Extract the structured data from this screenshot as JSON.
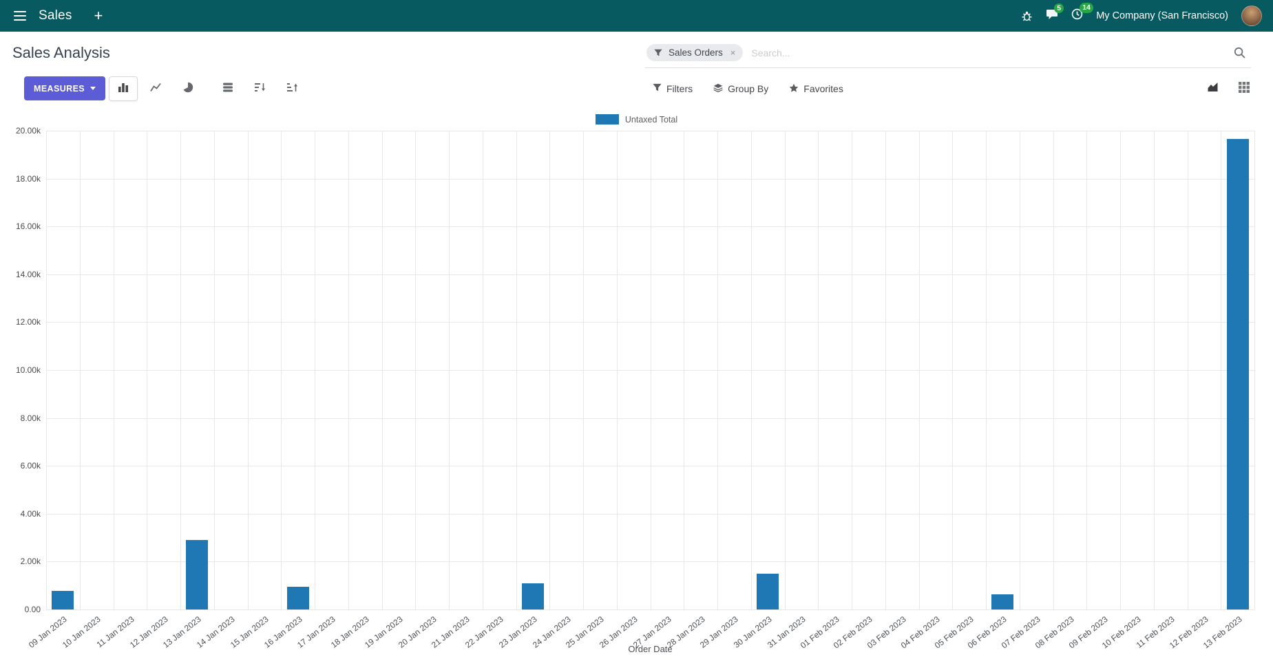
{
  "navbar": {
    "app_menu_label": "Sales",
    "new_label": "+",
    "messages_badge": "5",
    "activities_badge": "14",
    "company_name": "My Company (San Francisco)"
  },
  "control_panel": {
    "breadcrumb_title": "Sales Analysis",
    "measures_button": "MEASURES",
    "filters_label": "Filters",
    "group_by_label": "Group By",
    "favorites_label": "Favorites",
    "search": {
      "facet_label": "Sales Orders",
      "facet_remove_label": "×",
      "placeholder": "Search..."
    }
  },
  "chart_data": {
    "type": "bar",
    "title": "",
    "legend_position": "top",
    "grid": true,
    "xlabel": "Order Date",
    "ylabel": "",
    "ylim": [
      0,
      20000
    ],
    "ytick_step": 2000,
    "ytick_labels": [
      "0.00",
      "2.00k",
      "4.00k",
      "6.00k",
      "8.00k",
      "10.00k",
      "12.00k",
      "14.00k",
      "16.00k",
      "18.00k",
      "20.00k"
    ],
    "categories": [
      "09 Jan 2023",
      "10 Jan 2023",
      "11 Jan 2023",
      "12 Jan 2023",
      "13 Jan 2023",
      "14 Jan 2023",
      "15 Jan 2023",
      "16 Jan 2023",
      "17 Jan 2023",
      "18 Jan 2023",
      "19 Jan 2023",
      "20 Jan 2023",
      "21 Jan 2023",
      "22 Jan 2023",
      "23 Jan 2023",
      "24 Jan 2023",
      "25 Jan 2023",
      "26 Jan 2023",
      "27 Jan 2023",
      "28 Jan 2023",
      "29 Jan 2023",
      "30 Jan 2023",
      "31 Jan 2023",
      "01 Feb 2023",
      "02 Feb 2023",
      "03 Feb 2023",
      "04 Feb 2023",
      "05 Feb 2023",
      "06 Feb 2023",
      "07 Feb 2023",
      "08 Feb 2023",
      "09 Feb 2023",
      "10 Feb 2023",
      "11 Feb 2023",
      "12 Feb 2023",
      "13 Feb 2023"
    ],
    "series": [
      {
        "name": "Untaxed Total",
        "color": "#1F77B4",
        "values": [
          780,
          0,
          0,
          0,
          2900,
          0,
          0,
          950,
          0,
          0,
          0,
          0,
          0,
          0,
          1080,
          0,
          0,
          0,
          0,
          0,
          0,
          1500,
          0,
          0,
          0,
          0,
          0,
          0,
          630,
          0,
          0,
          0,
          0,
          0,
          0,
          19650
        ]
      }
    ]
  },
  "colors": {
    "navbar_bg": "#075A5F",
    "primary_button": "#5C5CD6",
    "badge_green": "#28A745",
    "bar_blue": "#1F77B4"
  },
  "icons": {
    "menu": "hamburger",
    "add": "plus",
    "debug": "bug",
    "messages": "speech-bubble",
    "activities": "clock",
    "search": "magnifier",
    "facet": "funnel",
    "bar_chart": "vertical-bars",
    "line_chart": "polyline",
    "pie_chart": "pie",
    "stacked": "stack",
    "sort_desc": "bars-arrow-down",
    "sort_asc": "bars-arrow-up",
    "filters": "funnel",
    "group_by": "layers",
    "favorites": "star",
    "graph_view": "area-chart",
    "pivot_view": "grid"
  }
}
